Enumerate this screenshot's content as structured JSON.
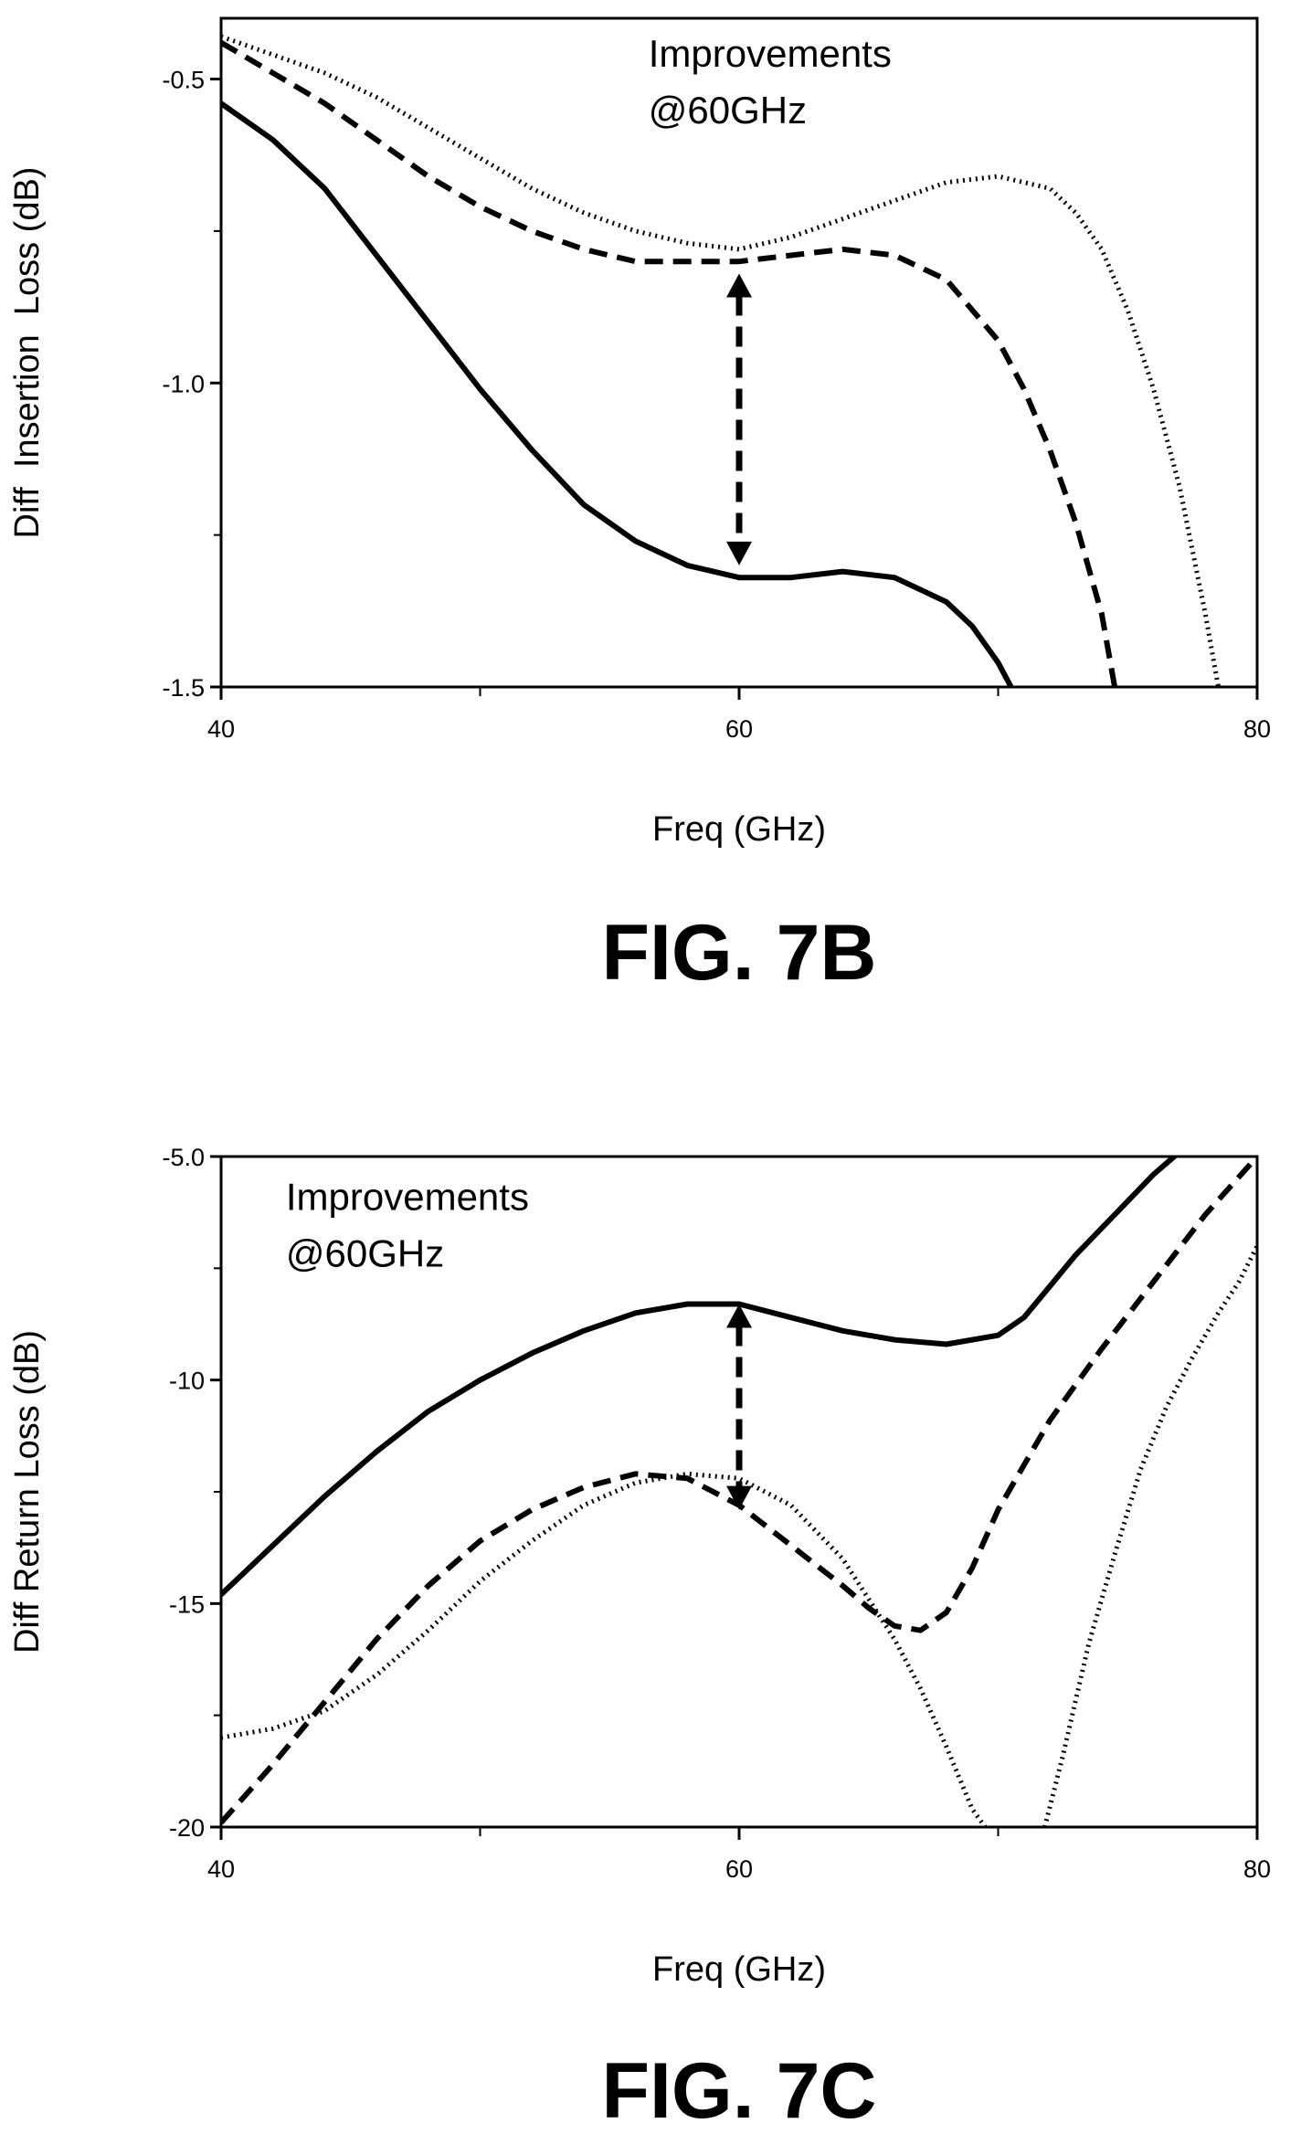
{
  "chart_data": [
    {
      "type": "line",
      "figure_label": "FIG. 7B",
      "title": "",
      "xlabel": "Freq (GHz)",
      "ylabel": "Diff  Insertion  Loss (dB)",
      "xlim": [
        40,
        80
      ],
      "ylim": [
        -1.5,
        -0.4
      ],
      "x_ticks": [
        40,
        60,
        80
      ],
      "x_tick_labels": [
        "40",
        "60",
        "80"
      ],
      "y_ticks": [
        -0.5,
        -1.0,
        -1.5
      ],
      "y_tick_labels": [
        "-0.5",
        "-1.0",
        "-1.5"
      ],
      "grid": false,
      "annotation": {
        "lines": [
          "Improvements",
          "@60GHz"
        ],
        "x": 56.5,
        "y": -0.48
      },
      "arrow": {
        "x": 60,
        "y_from": -0.82,
        "y_to": -1.3
      },
      "series": [
        {
          "style": "solid",
          "x": [
            40,
            42,
            44,
            46,
            48,
            50,
            52,
            54,
            56,
            58,
            60,
            62,
            64,
            66,
            68,
            69,
            70,
            70.5
          ],
          "y": [
            -0.54,
            -0.6,
            -0.68,
            -0.79,
            -0.9,
            -1.01,
            -1.11,
            -1.2,
            -1.26,
            -1.3,
            -1.32,
            -1.32,
            -1.31,
            -1.32,
            -1.36,
            -1.4,
            -1.46,
            -1.5
          ]
        },
        {
          "style": "dashed",
          "x": [
            40,
            42,
            44,
            46,
            48,
            50,
            52,
            54,
            56,
            58,
            60,
            62,
            64,
            66,
            68,
            70,
            71,
            72,
            73,
            74,
            74.5
          ],
          "y": [
            -0.44,
            -0.49,
            -0.54,
            -0.6,
            -0.66,
            -0.71,
            -0.75,
            -0.78,
            -0.8,
            -0.8,
            -0.8,
            -0.79,
            -0.78,
            -0.79,
            -0.83,
            -0.93,
            -1.01,
            -1.11,
            -1.23,
            -1.38,
            -1.5
          ]
        },
        {
          "style": "dotted",
          "x": [
            40,
            42,
            44,
            46,
            48,
            50,
            52,
            54,
            56,
            58,
            60,
            62,
            64,
            66,
            68,
            70,
            72,
            73,
            74,
            75,
            76,
            77,
            78,
            78.5
          ],
          "y": [
            -0.43,
            -0.46,
            -0.49,
            -0.53,
            -0.58,
            -0.63,
            -0.68,
            -0.72,
            -0.75,
            -0.77,
            -0.78,
            -0.76,
            -0.73,
            -0.7,
            -0.67,
            -0.66,
            -0.68,
            -0.72,
            -0.78,
            -0.88,
            -1.01,
            -1.17,
            -1.38,
            -1.5
          ]
        }
      ]
    },
    {
      "type": "line",
      "figure_label": "FIG. 7C",
      "title": "",
      "xlabel": "Freq (GHz)",
      "ylabel": "Diff Return Loss (dB)",
      "xlim": [
        40,
        80
      ],
      "ylim": [
        -20,
        -5
      ],
      "x_ticks": [
        40,
        60,
        80
      ],
      "x_tick_labels": [
        "40",
        "60",
        "80"
      ],
      "y_ticks": [
        -5,
        -10,
        -15,
        -20
      ],
      "y_tick_labels": [
        "-5.0",
        "-10",
        "-15",
        "-20"
      ],
      "grid": false,
      "annotation": {
        "lines": [
          "Improvements",
          "@60GHz"
        ],
        "x": 42.5,
        "y": -6.2
      },
      "arrow": {
        "x": 60,
        "y_from": -8.3,
        "y_to": -12.9
      },
      "series": [
        {
          "style": "solid",
          "x": [
            40,
            42,
            44,
            46,
            48,
            50,
            52,
            54,
            56,
            58,
            60,
            62,
            64,
            66,
            68,
            70,
            71,
            72,
            73,
            74,
            75,
            76,
            76.8
          ],
          "y": [
            -14.8,
            -13.7,
            -12.6,
            -11.6,
            -10.7,
            -10.0,
            -9.4,
            -8.9,
            -8.5,
            -8.3,
            -8.3,
            -8.6,
            -8.9,
            -9.1,
            -9.2,
            -9.0,
            -8.6,
            -7.9,
            -7.2,
            -6.6,
            -6.0,
            -5.4,
            -5.0
          ]
        },
        {
          "style": "dashed",
          "x": [
            40,
            42,
            44,
            46,
            48,
            50,
            52,
            54,
            56,
            58,
            60,
            62,
            64,
            65,
            66,
            67,
            68,
            69,
            70,
            72,
            74,
            76,
            78,
            80
          ],
          "y": [
            -19.9,
            -18.6,
            -17.2,
            -15.8,
            -14.6,
            -13.6,
            -12.9,
            -12.4,
            -12.1,
            -12.2,
            -12.8,
            -13.7,
            -14.6,
            -15.1,
            -15.5,
            -15.6,
            -15.2,
            -14.2,
            -12.9,
            -10.9,
            -9.3,
            -7.8,
            -6.3,
            -5.0
          ]
        },
        {
          "style": "dotted",
          "x": [
            40,
            42,
            44,
            46,
            48,
            50,
            52,
            54,
            56,
            58,
            60,
            62,
            64,
            66,
            67,
            68,
            69,
            69.5
          ],
          "y": [
            -18.0,
            -17.8,
            -17.4,
            -16.6,
            -15.6,
            -14.5,
            -13.6,
            -12.8,
            -12.3,
            -12.1,
            -12.2,
            -12.8,
            -14.0,
            -15.8,
            -16.9,
            -18.2,
            -19.6,
            -20
          ]
        },
        {
          "style": "dotted",
          "x": [
            71.8,
            72.5,
            73.5,
            74.5,
            75.5,
            76.5,
            77.5,
            78.5,
            79.3,
            80
          ],
          "y": [
            -20,
            -18.4,
            -15.9,
            -13.9,
            -12.0,
            -10.6,
            -9.5,
            -8.5,
            -7.8,
            -7.0
          ]
        }
      ]
    }
  ]
}
